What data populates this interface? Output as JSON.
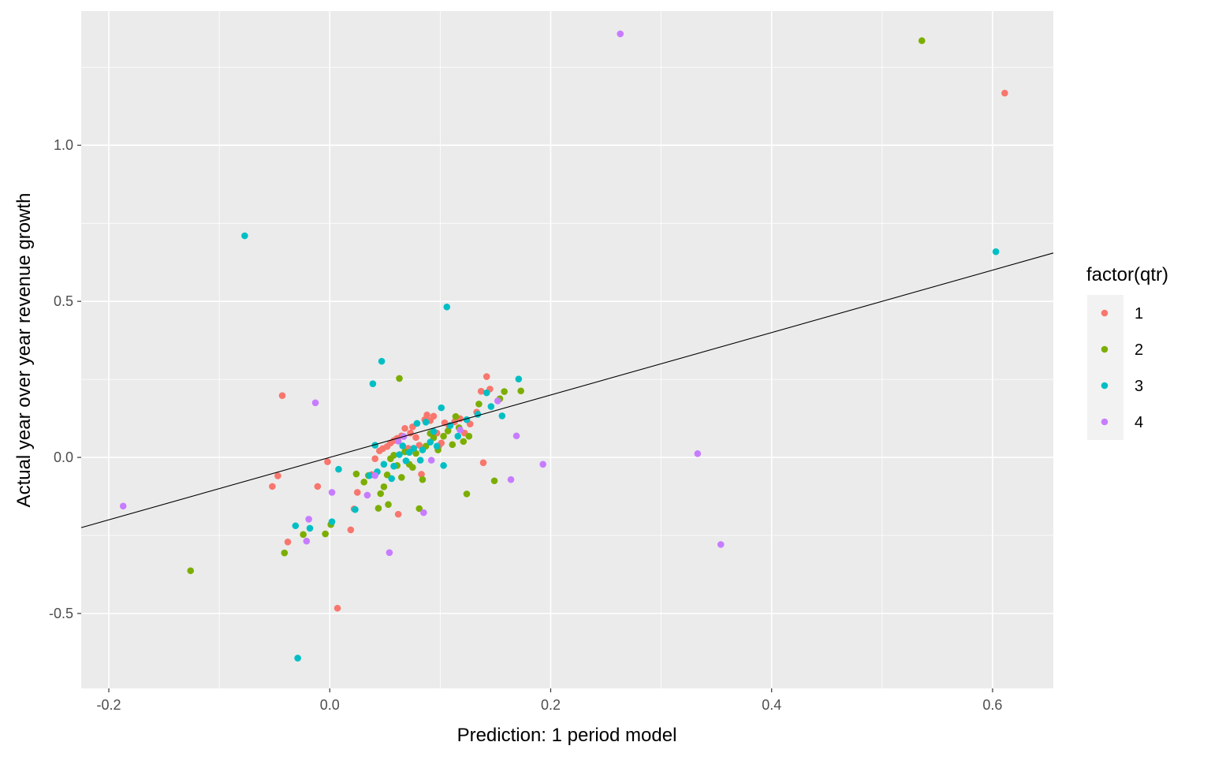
{
  "chart_data": {
    "type": "scatter",
    "title": "",
    "xlabel": "Prediction: 1 period model",
    "ylabel": "Actual year over year revenue growth",
    "xlim": [
      -0.225,
      0.655
    ],
    "ylim": [
      -0.74,
      1.43
    ],
    "x_ticks": [
      -0.2,
      0.0,
      0.2,
      0.4,
      0.6
    ],
    "x_tick_labels": [
      "-0.2",
      "0.0",
      "0.2",
      "0.4",
      "0.6"
    ],
    "y_ticks": [
      -0.5,
      0.0,
      0.5,
      1.0
    ],
    "y_tick_labels": [
      "-0.5",
      "0.0",
      "0.5",
      "1.0"
    ],
    "grid": true,
    "legend": {
      "title": "factor(qtr)",
      "placement": "right"
    },
    "reference_line": {
      "slope": 1,
      "intercept": 0,
      "color": "#000000"
    },
    "series": [
      {
        "name": "1",
        "color": "#F8766D",
        "points": [
          [
            0.611,
            1.167
          ],
          [
            -0.043,
            0.198
          ],
          [
            -0.047,
            -0.059
          ],
          [
            -0.052,
            -0.093
          ],
          [
            -0.038,
            -0.271
          ],
          [
            -0.011,
            -0.093
          ],
          [
            -0.002,
            -0.014
          ],
          [
            0.007,
            -0.483
          ],
          [
            0.019,
            -0.232
          ],
          [
            0.022,
            -0.165
          ],
          [
            0.025,
            -0.112
          ],
          [
            0.038,
            -0.055
          ],
          [
            0.041,
            -0.004
          ],
          [
            0.045,
            0.021
          ],
          [
            0.048,
            0.028
          ],
          [
            0.052,
            0.035
          ],
          [
            0.055,
            0.046
          ],
          [
            0.058,
            0.054
          ],
          [
            0.061,
            0.061
          ],
          [
            0.062,
            -0.182
          ],
          [
            0.065,
            0.069
          ],
          [
            0.068,
            0.093
          ],
          [
            0.071,
            0.029
          ],
          [
            0.073,
            0.078
          ],
          [
            0.075,
            0.098
          ],
          [
            0.078,
            0.064
          ],
          [
            0.081,
            0.039
          ],
          [
            0.083,
            -0.054
          ],
          [
            0.086,
            0.121
          ],
          [
            0.088,
            0.136
          ],
          [
            0.091,
            0.118
          ],
          [
            0.094,
            0.132
          ],
          [
            0.097,
            0.078
          ],
          [
            0.101,
            0.046
          ],
          [
            0.104,
            0.111
          ],
          [
            0.108,
            0.102
          ],
          [
            0.113,
            0.114
          ],
          [
            0.118,
            0.124
          ],
          [
            0.122,
            0.078
          ],
          [
            0.127,
            0.107
          ],
          [
            0.133,
            0.145
          ],
          [
            0.137,
            0.212
          ],
          [
            0.139,
            -0.017
          ],
          [
            0.142,
            0.259
          ],
          [
            0.145,
            0.219
          ],
          [
            0.099,
            0.038
          ]
        ]
      },
      {
        "name": "2",
        "color": "#7CAE00",
        "points": [
          [
            0.536,
            1.335
          ],
          [
            -0.126,
            -0.363
          ],
          [
            -0.041,
            -0.306
          ],
          [
            -0.024,
            -0.247
          ],
          [
            -0.004,
            -0.245
          ],
          [
            0.001,
            -0.215
          ],
          [
            0.024,
            -0.053
          ],
          [
            0.031,
            -0.079
          ],
          [
            0.035,
            -0.058
          ],
          [
            0.044,
            -0.163
          ],
          [
            0.046,
            -0.116
          ],
          [
            0.049,
            -0.094
          ],
          [
            0.052,
            -0.056
          ],
          [
            0.055,
            -0.004
          ],
          [
            0.053,
            -0.151
          ],
          [
            0.058,
            0.007
          ],
          [
            0.061,
            -0.026
          ],
          [
            0.063,
            0.253
          ],
          [
            0.065,
            -0.064
          ],
          [
            0.068,
            0.018
          ],
          [
            0.072,
            -0.022
          ],
          [
            0.075,
            -0.032
          ],
          [
            0.078,
            0.013
          ],
          [
            0.081,
            -0.164
          ],
          [
            0.084,
            -0.071
          ],
          [
            0.087,
            0.036
          ],
          [
            0.091,
            0.077
          ],
          [
            0.094,
            0.063
          ],
          [
            0.098,
            0.024
          ],
          [
            0.103,
            0.068
          ],
          [
            0.107,
            0.085
          ],
          [
            0.111,
            0.041
          ],
          [
            0.114,
            0.131
          ],
          [
            0.117,
            0.095
          ],
          [
            0.121,
            0.051
          ],
          [
            0.124,
            -0.117
          ],
          [
            0.126,
            0.068
          ],
          [
            0.135,
            0.171
          ],
          [
            0.149,
            -0.075
          ],
          [
            0.154,
            0.188
          ],
          [
            0.158,
            0.211
          ],
          [
            0.173,
            0.213
          ]
        ]
      },
      {
        "name": "3",
        "color": "#00BFC4",
        "points": [
          [
            0.603,
            0.659
          ],
          [
            -0.077,
            0.71
          ],
          [
            -0.031,
            -0.219
          ],
          [
            -0.029,
            -0.643
          ],
          [
            -0.018,
            -0.227
          ],
          [
            0.002,
            -0.206
          ],
          [
            0.008,
            -0.038
          ],
          [
            0.023,
            -0.167
          ],
          [
            0.036,
            -0.058
          ],
          [
            0.039,
            0.236
          ],
          [
            0.041,
            0.039
          ],
          [
            0.043,
            -0.046
          ],
          [
            0.047,
            0.308
          ],
          [
            0.049,
            -0.022
          ],
          [
            0.056,
            -0.068
          ],
          [
            0.058,
            -0.028
          ],
          [
            0.063,
            0.009
          ],
          [
            0.066,
            0.037
          ],
          [
            0.069,
            -0.011
          ],
          [
            0.072,
            0.016
          ],
          [
            0.076,
            0.029
          ],
          [
            0.079,
            0.109
          ],
          [
            0.082,
            -0.009
          ],
          [
            0.084,
            0.024
          ],
          [
            0.087,
            0.113
          ],
          [
            0.091,
            0.049
          ],
          [
            0.094,
            0.083
          ],
          [
            0.097,
            0.036
          ],
          [
            0.101,
            0.159
          ],
          [
            0.103,
            -0.026
          ],
          [
            0.106,
            0.482
          ],
          [
            0.109,
            0.102
          ],
          [
            0.116,
            0.068
          ],
          [
            0.124,
            0.121
          ],
          [
            0.134,
            0.138
          ],
          [
            0.142,
            0.207
          ],
          [
            0.146,
            0.163
          ],
          [
            0.156,
            0.133
          ],
          [
            0.171,
            0.251
          ]
        ]
      },
      {
        "name": "4",
        "color": "#C77CFF",
        "points": [
          [
            0.263,
            1.357
          ],
          [
            -0.187,
            -0.156
          ],
          [
            -0.013,
            0.175
          ],
          [
            -0.019,
            -0.198
          ],
          [
            -0.021,
            -0.268
          ],
          [
            0.002,
            -0.112
          ],
          [
            0.034,
            -0.121
          ],
          [
            0.041,
            -0.058
          ],
          [
            0.054,
            -0.305
          ],
          [
            0.062,
            0.052
          ],
          [
            0.067,
            0.067
          ],
          [
            0.085,
            -0.177
          ],
          [
            0.092,
            -0.009
          ],
          [
            0.118,
            0.088
          ],
          [
            0.152,
            0.181
          ],
          [
            0.164,
            -0.071
          ],
          [
            0.169,
            0.069
          ],
          [
            0.193,
            -0.022
          ],
          [
            0.333,
            0.012
          ],
          [
            0.354,
            -0.279
          ]
        ]
      }
    ]
  }
}
